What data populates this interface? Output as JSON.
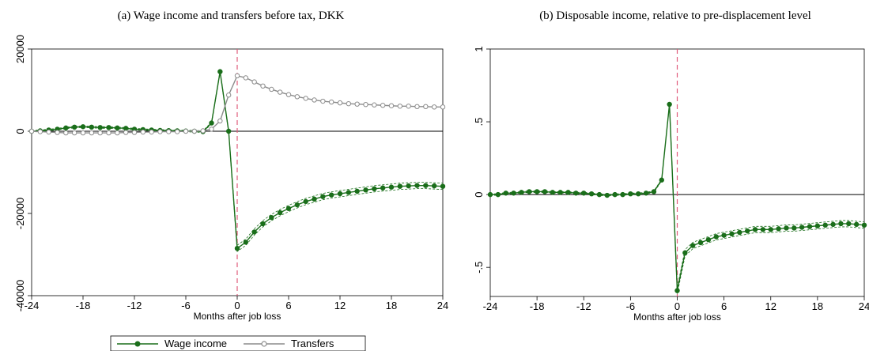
{
  "chart_data": [
    {
      "type": "line",
      "title": "(a) Wage income and transfers before tax, DKK",
      "xlabel": "Months after job loss",
      "ylabel": "",
      "xlim": [
        -24,
        24
      ],
      "ylim": [
        -40000,
        20000
      ],
      "xticks": [
        -24,
        -18,
        -12,
        -6,
        0,
        6,
        12,
        18,
        24
      ],
      "yticks": [
        -40000,
        -20000,
        0,
        20000
      ],
      "x": [
        -24,
        -23,
        -22,
        -21,
        -20,
        -19,
        -18,
        -17,
        -16,
        -15,
        -14,
        -13,
        -12,
        -11,
        -10,
        -9,
        -8,
        -7,
        -6,
        -5,
        -4,
        -3,
        -2,
        -1,
        0,
        1,
        2,
        3,
        4,
        5,
        6,
        7,
        8,
        9,
        10,
        11,
        12,
        13,
        14,
        15,
        16,
        17,
        18,
        19,
        20,
        21,
        22,
        23,
        24
      ],
      "series": [
        {
          "name": "Wage income",
          "color": "#1a6e1a",
          "marker": "filled",
          "ci": true,
          "values": [
            0,
            100,
            300,
            500,
            800,
            1000,
            1100,
            1000,
            900,
            900,
            800,
            700,
            500,
            400,
            300,
            200,
            150,
            100,
            50,
            0,
            -100,
            2000,
            14500,
            0,
            -28500,
            -27000,
            -24500,
            -22500,
            -21000,
            -19800,
            -18800,
            -17900,
            -17100,
            -16500,
            -15900,
            -15500,
            -15200,
            -14900,
            -14600,
            -14300,
            -14000,
            -13800,
            -13600,
            -13400,
            -13300,
            -13200,
            -13200,
            -13300,
            -13400
          ]
        },
        {
          "name": "Transfers",
          "color": "#8c8c8c",
          "marker": "hollow",
          "ci": false,
          "values": [
            0,
            -100,
            -200,
            -300,
            -400,
            -400,
            -400,
            -400,
            -400,
            -400,
            -400,
            -300,
            -300,
            -200,
            -200,
            -100,
            -100,
            -100,
            0,
            0,
            100,
            500,
            2500,
            8800,
            13500,
            13000,
            12000,
            11000,
            10200,
            9500,
            8900,
            8400,
            8000,
            7600,
            7300,
            7100,
            6900,
            6700,
            6600,
            6500,
            6400,
            6300,
            6200,
            6100,
            6100,
            6000,
            6000,
            5900,
            5900
          ]
        }
      ],
      "legend": {
        "placement": "bottom"
      }
    },
    {
      "type": "line",
      "title": "(b) Disposable income, relative to pre-displacement level",
      "xlabel": "Months after job loss",
      "ylabel": "",
      "xlim": [
        -24,
        24
      ],
      "ylim": [
        -0.7,
        1
      ],
      "xticks": [
        -24,
        -18,
        -12,
        -6,
        0,
        6,
        12,
        18,
        24
      ],
      "yticks": [
        -0.5,
        0,
        0.5,
        1
      ],
      "ytick_labels": [
        "-.5",
        "0",
        ".5",
        "1"
      ],
      "x": [
        -24,
        -23,
        -22,
        -21,
        -20,
        -19,
        -18,
        -17,
        -16,
        -15,
        -14,
        -13,
        -12,
        -11,
        -10,
        -9,
        -8,
        -7,
        -6,
        -5,
        -4,
        -3,
        -2,
        -1,
        0,
        1,
        2,
        3,
        4,
        5,
        6,
        7,
        8,
        9,
        10,
        11,
        12,
        13,
        14,
        15,
        16,
        17,
        18,
        19,
        20,
        21,
        22,
        23,
        24
      ],
      "series": [
        {
          "name": "Disposable income",
          "color": "#1a6e1a",
          "marker": "filled",
          "ci": true,
          "values": [
            0,
            0,
            0.01,
            0.01,
            0.015,
            0.02,
            0.02,
            0.02,
            0.015,
            0.015,
            0.015,
            0.01,
            0.01,
            0.005,
            0,
            -0.005,
            0,
            0,
            0.005,
            0.005,
            0.01,
            0.02,
            0.1,
            0.62,
            -0.66,
            -0.4,
            -0.35,
            -0.33,
            -0.31,
            -0.29,
            -0.28,
            -0.27,
            -0.26,
            -0.25,
            -0.24,
            -0.24,
            -0.24,
            -0.235,
            -0.23,
            -0.23,
            -0.225,
            -0.22,
            -0.215,
            -0.21,
            -0.205,
            -0.2,
            -0.2,
            -0.205,
            -0.21
          ]
        }
      ]
    }
  ],
  "legend": {
    "items": [
      {
        "label": "Wage income"
      },
      {
        "label": "Transfers"
      }
    ]
  }
}
